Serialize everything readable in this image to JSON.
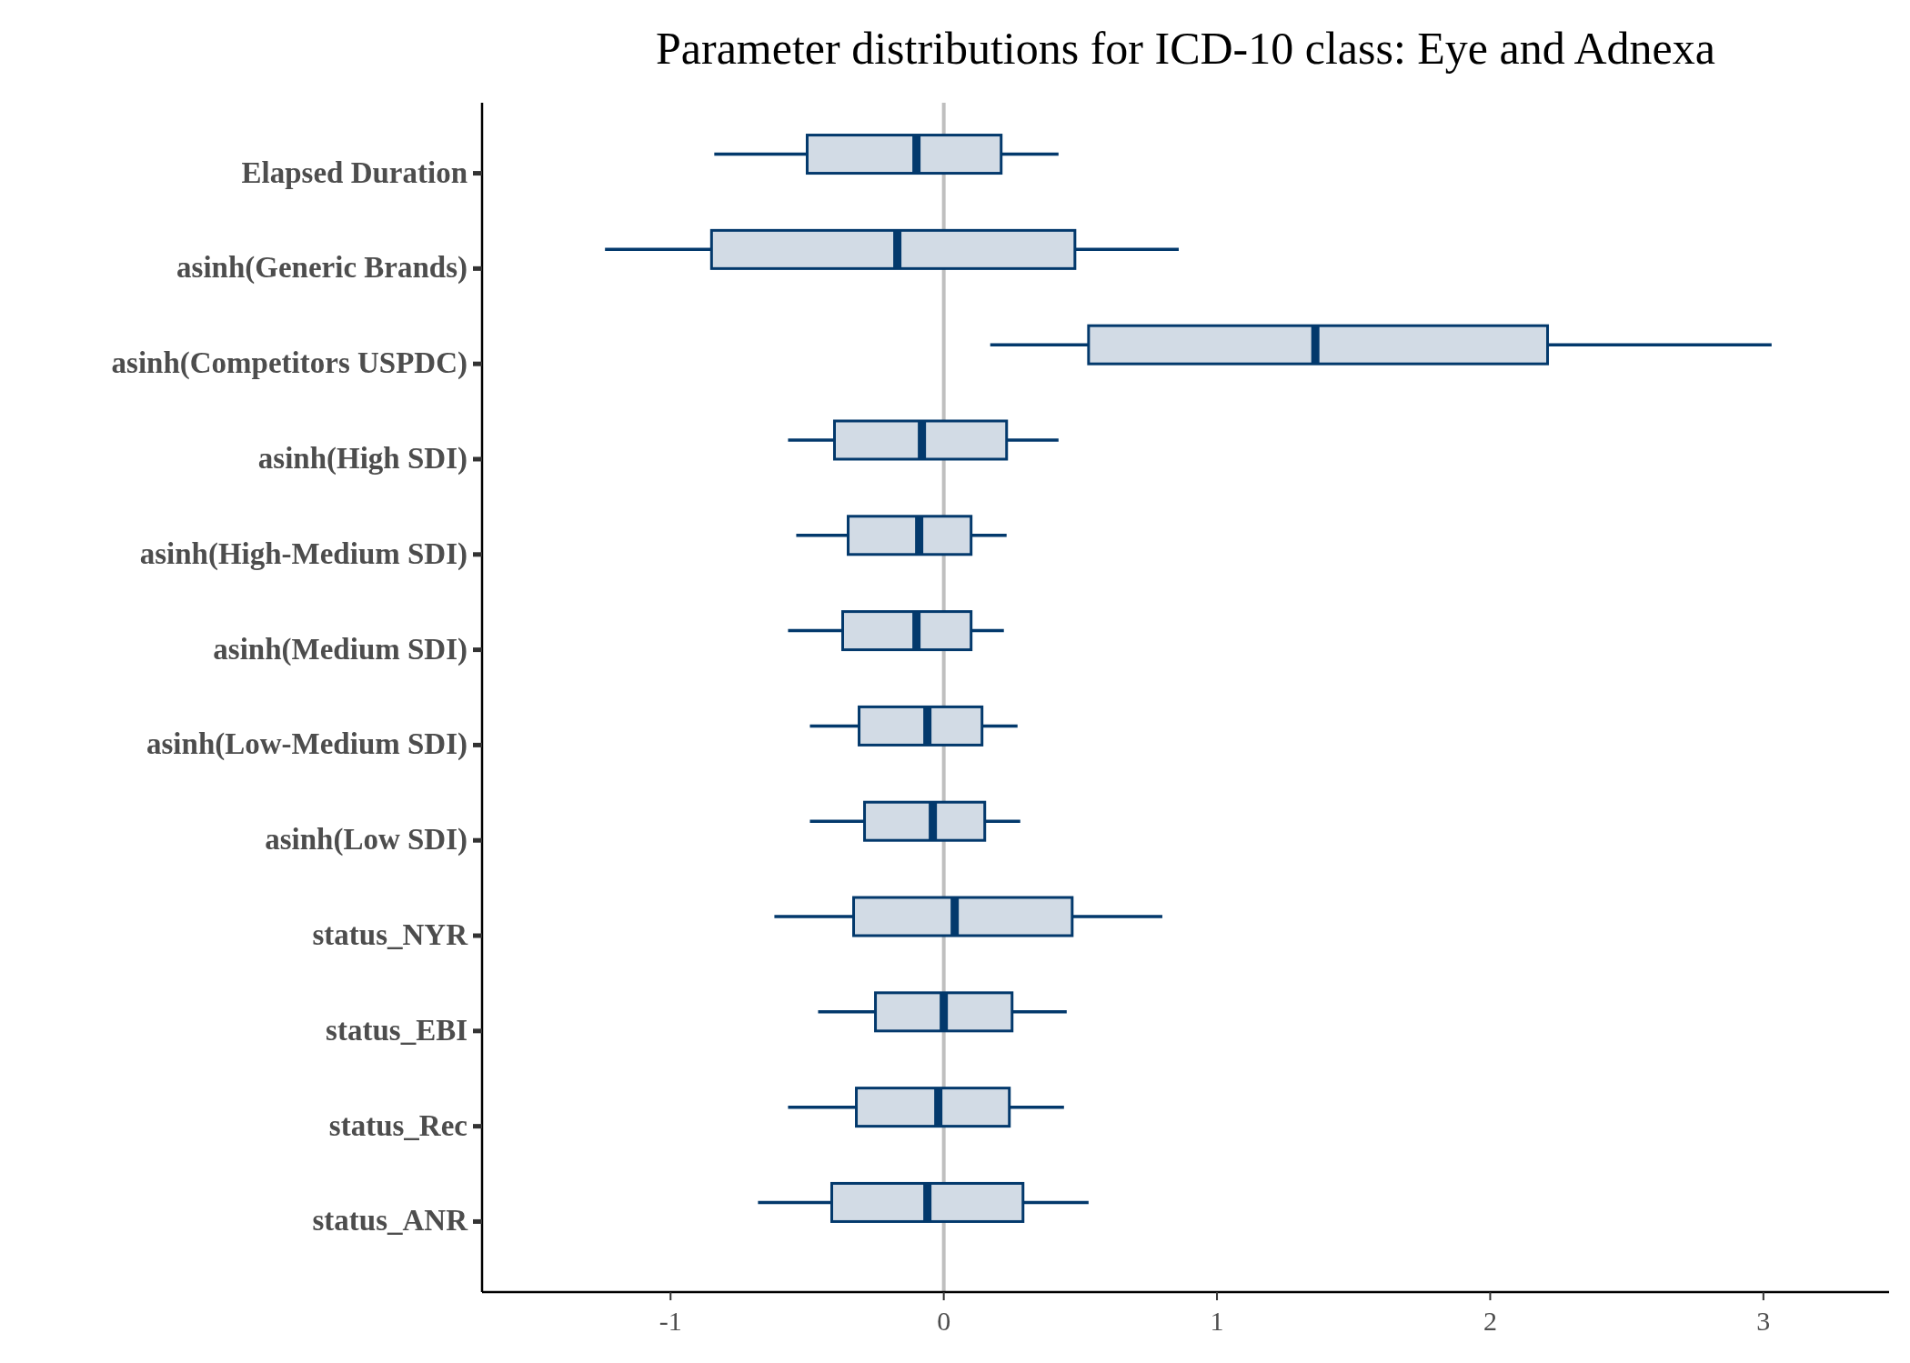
{
  "chart_data": {
    "type": "box",
    "orientation": "horizontal",
    "title": "Parameter distributions for ICD-10 class: Eye and Adnexa",
    "categories": [
      "Elapsed Duration",
      "asinh(Generic Brands)",
      "asinh(Competitors USPDC)",
      "asinh(High SDI)",
      "asinh(High-Medium SDI)",
      "asinh(Medium SDI)",
      "asinh(Low-Medium SDI)",
      "asinh(Low SDI)",
      "status_NYR",
      "status_EBI",
      "status_Rec",
      "status_ANR"
    ],
    "xlim": [
      -1.69,
      3.46
    ],
    "xticks": [
      -1,
      0,
      1,
      2,
      3
    ],
    "grid": false,
    "ref_lines": [
      {
        "axis": "x",
        "value": 0,
        "color": "#bfbfbf"
      }
    ],
    "series": [
      {
        "color": "#03396c",
        "boxes": [
          {
            "low": -0.84,
            "q1": -0.5,
            "median": -0.1,
            "q3": 0.21,
            "high": 0.42
          },
          {
            "low": -1.24,
            "q1": -0.85,
            "median": -0.17,
            "q3": 0.48,
            "high": 0.86
          },
          {
            "low": 0.17,
            "q1": 0.53,
            "median": 1.36,
            "q3": 2.21,
            "high": 3.03
          },
          {
            "low": -0.57,
            "q1": -0.4,
            "median": -0.08,
            "q3": 0.23,
            "high": 0.42
          },
          {
            "low": -0.54,
            "q1": -0.35,
            "median": -0.09,
            "q3": 0.1,
            "high": 0.23
          },
          {
            "low": -0.57,
            "q1": -0.37,
            "median": -0.1,
            "q3": 0.1,
            "high": 0.22
          },
          {
            "low": -0.49,
            "q1": -0.31,
            "median": -0.06,
            "q3": 0.14,
            "high": 0.27
          },
          {
            "low": -0.49,
            "q1": -0.29,
            "median": -0.04,
            "q3": 0.15,
            "high": 0.28
          },
          {
            "low": -0.62,
            "q1": -0.33,
            "median": 0.04,
            "q3": 0.47,
            "high": 0.8
          },
          {
            "low": -0.46,
            "q1": -0.25,
            "median": 0.0,
            "q3": 0.25,
            "high": 0.45
          },
          {
            "low": -0.57,
            "q1": -0.32,
            "median": -0.02,
            "q3": 0.24,
            "high": 0.44
          },
          {
            "low": -0.68,
            "q1": -0.41,
            "median": -0.06,
            "q3": 0.29,
            "high": 0.53
          }
        ]
      }
    ]
  }
}
